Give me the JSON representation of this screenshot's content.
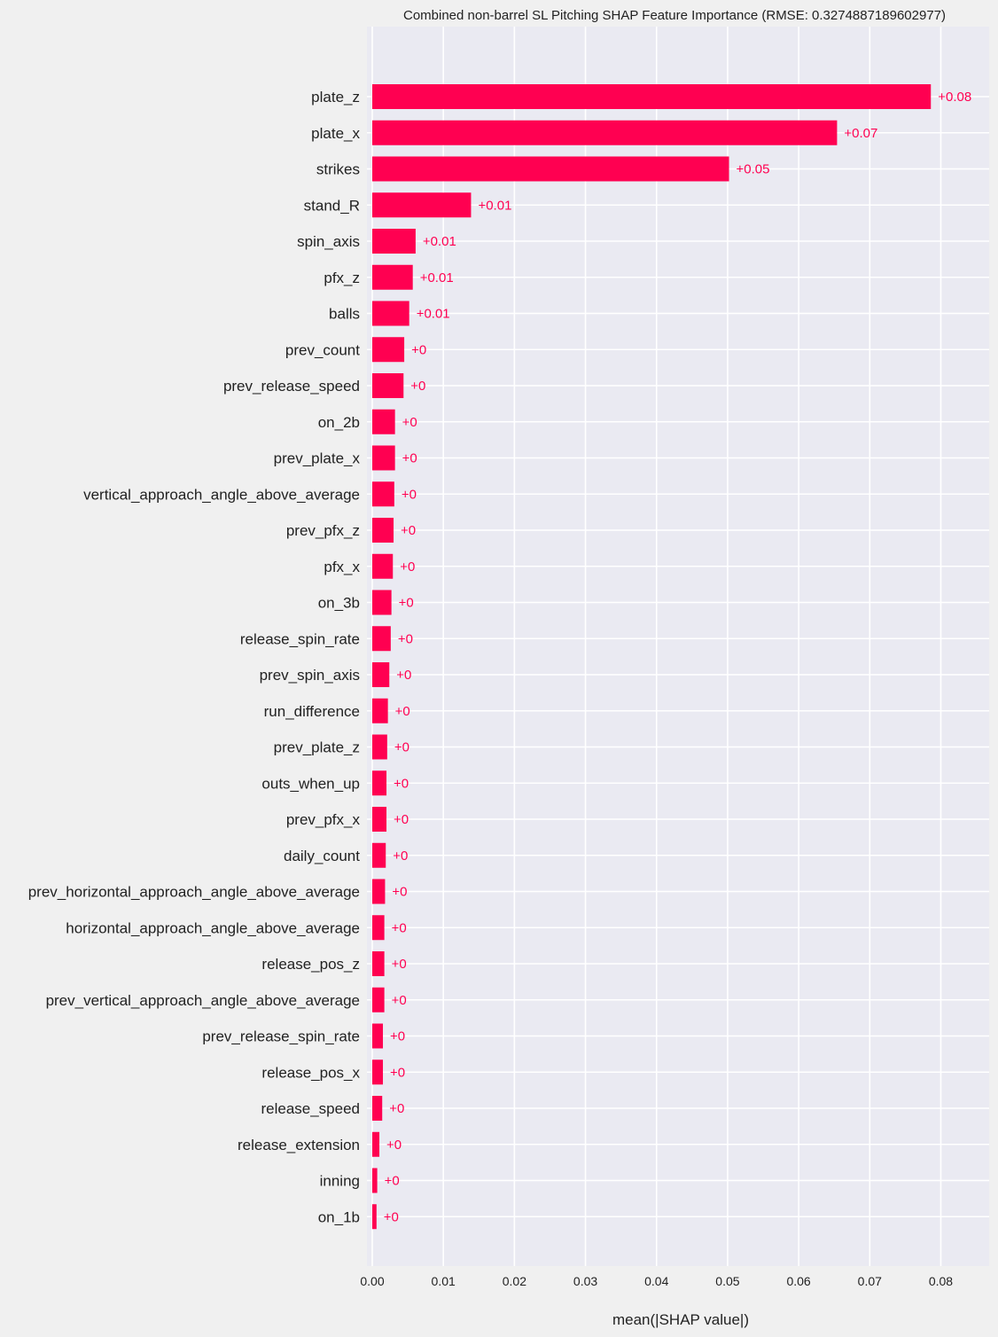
{
  "colors": {
    "figure_bg": "#f0f0f0",
    "plot_bg": "#eaeaf2",
    "grid": "#ffffff",
    "bar": "#ff0051",
    "value_text": "#ff0051"
  },
  "chart_data": {
    "type": "bar",
    "orientation": "horizontal",
    "title": "Combined non-barrel SL Pitching SHAP Feature Importance (RMSE: 0.3274887189602977)",
    "xlabel": "mean(|SHAP value|)",
    "ylabel": "",
    "xlim": [
      0,
      0.0868
    ],
    "xticks": [
      0.0,
      0.01,
      0.02,
      0.03,
      0.04,
      0.05,
      0.06,
      0.07,
      0.08
    ],
    "xtick_labels": [
      "0.00",
      "0.01",
      "0.02",
      "0.03",
      "0.04",
      "0.05",
      "0.06",
      "0.07",
      "0.08"
    ],
    "grid": true,
    "categories": [
      "plate_z",
      "plate_x",
      "strikes",
      "stand_R",
      "spin_axis",
      "pfx_z",
      "balls",
      "prev_count",
      "prev_release_speed",
      "on_2b",
      "prev_plate_x",
      "vertical_approach_angle_above_average",
      "prev_pfx_z",
      "pfx_x",
      "on_3b",
      "release_spin_rate",
      "prev_spin_axis",
      "run_difference",
      "prev_plate_z",
      "outs_when_up",
      "prev_pfx_x",
      "daily_count",
      "prev_horizontal_approach_angle_above_average",
      "horizontal_approach_angle_above_average",
      "release_pos_z",
      "prev_vertical_approach_angle_above_average",
      "prev_release_spin_rate",
      "release_pos_x",
      "release_speed",
      "release_extension",
      "inning",
      "on_1b"
    ],
    "values": [
      0.0786,
      0.0654,
      0.0502,
      0.0139,
      0.0061,
      0.0057,
      0.0052,
      0.0045,
      0.0044,
      0.0032,
      0.0032,
      0.0031,
      0.003,
      0.0029,
      0.0027,
      0.0026,
      0.0024,
      0.0022,
      0.0021,
      0.002,
      0.002,
      0.0019,
      0.0018,
      0.0017,
      0.0017,
      0.0017,
      0.0015,
      0.0015,
      0.0014,
      0.001,
      0.0007,
      0.0006
    ],
    "value_labels": [
      "+0.08",
      "+0.07",
      "+0.05",
      "+0.01",
      "+0.01",
      "+0.01",
      "+0.01",
      "+0",
      "+0",
      "+0",
      "+0",
      "+0",
      "+0",
      "+0",
      "+0",
      "+0",
      "+0",
      "+0",
      "+0",
      "+0",
      "+0",
      "+0",
      "+0",
      "+0",
      "+0",
      "+0",
      "+0",
      "+0",
      "+0",
      "+0",
      "+0",
      "+0"
    ]
  }
}
